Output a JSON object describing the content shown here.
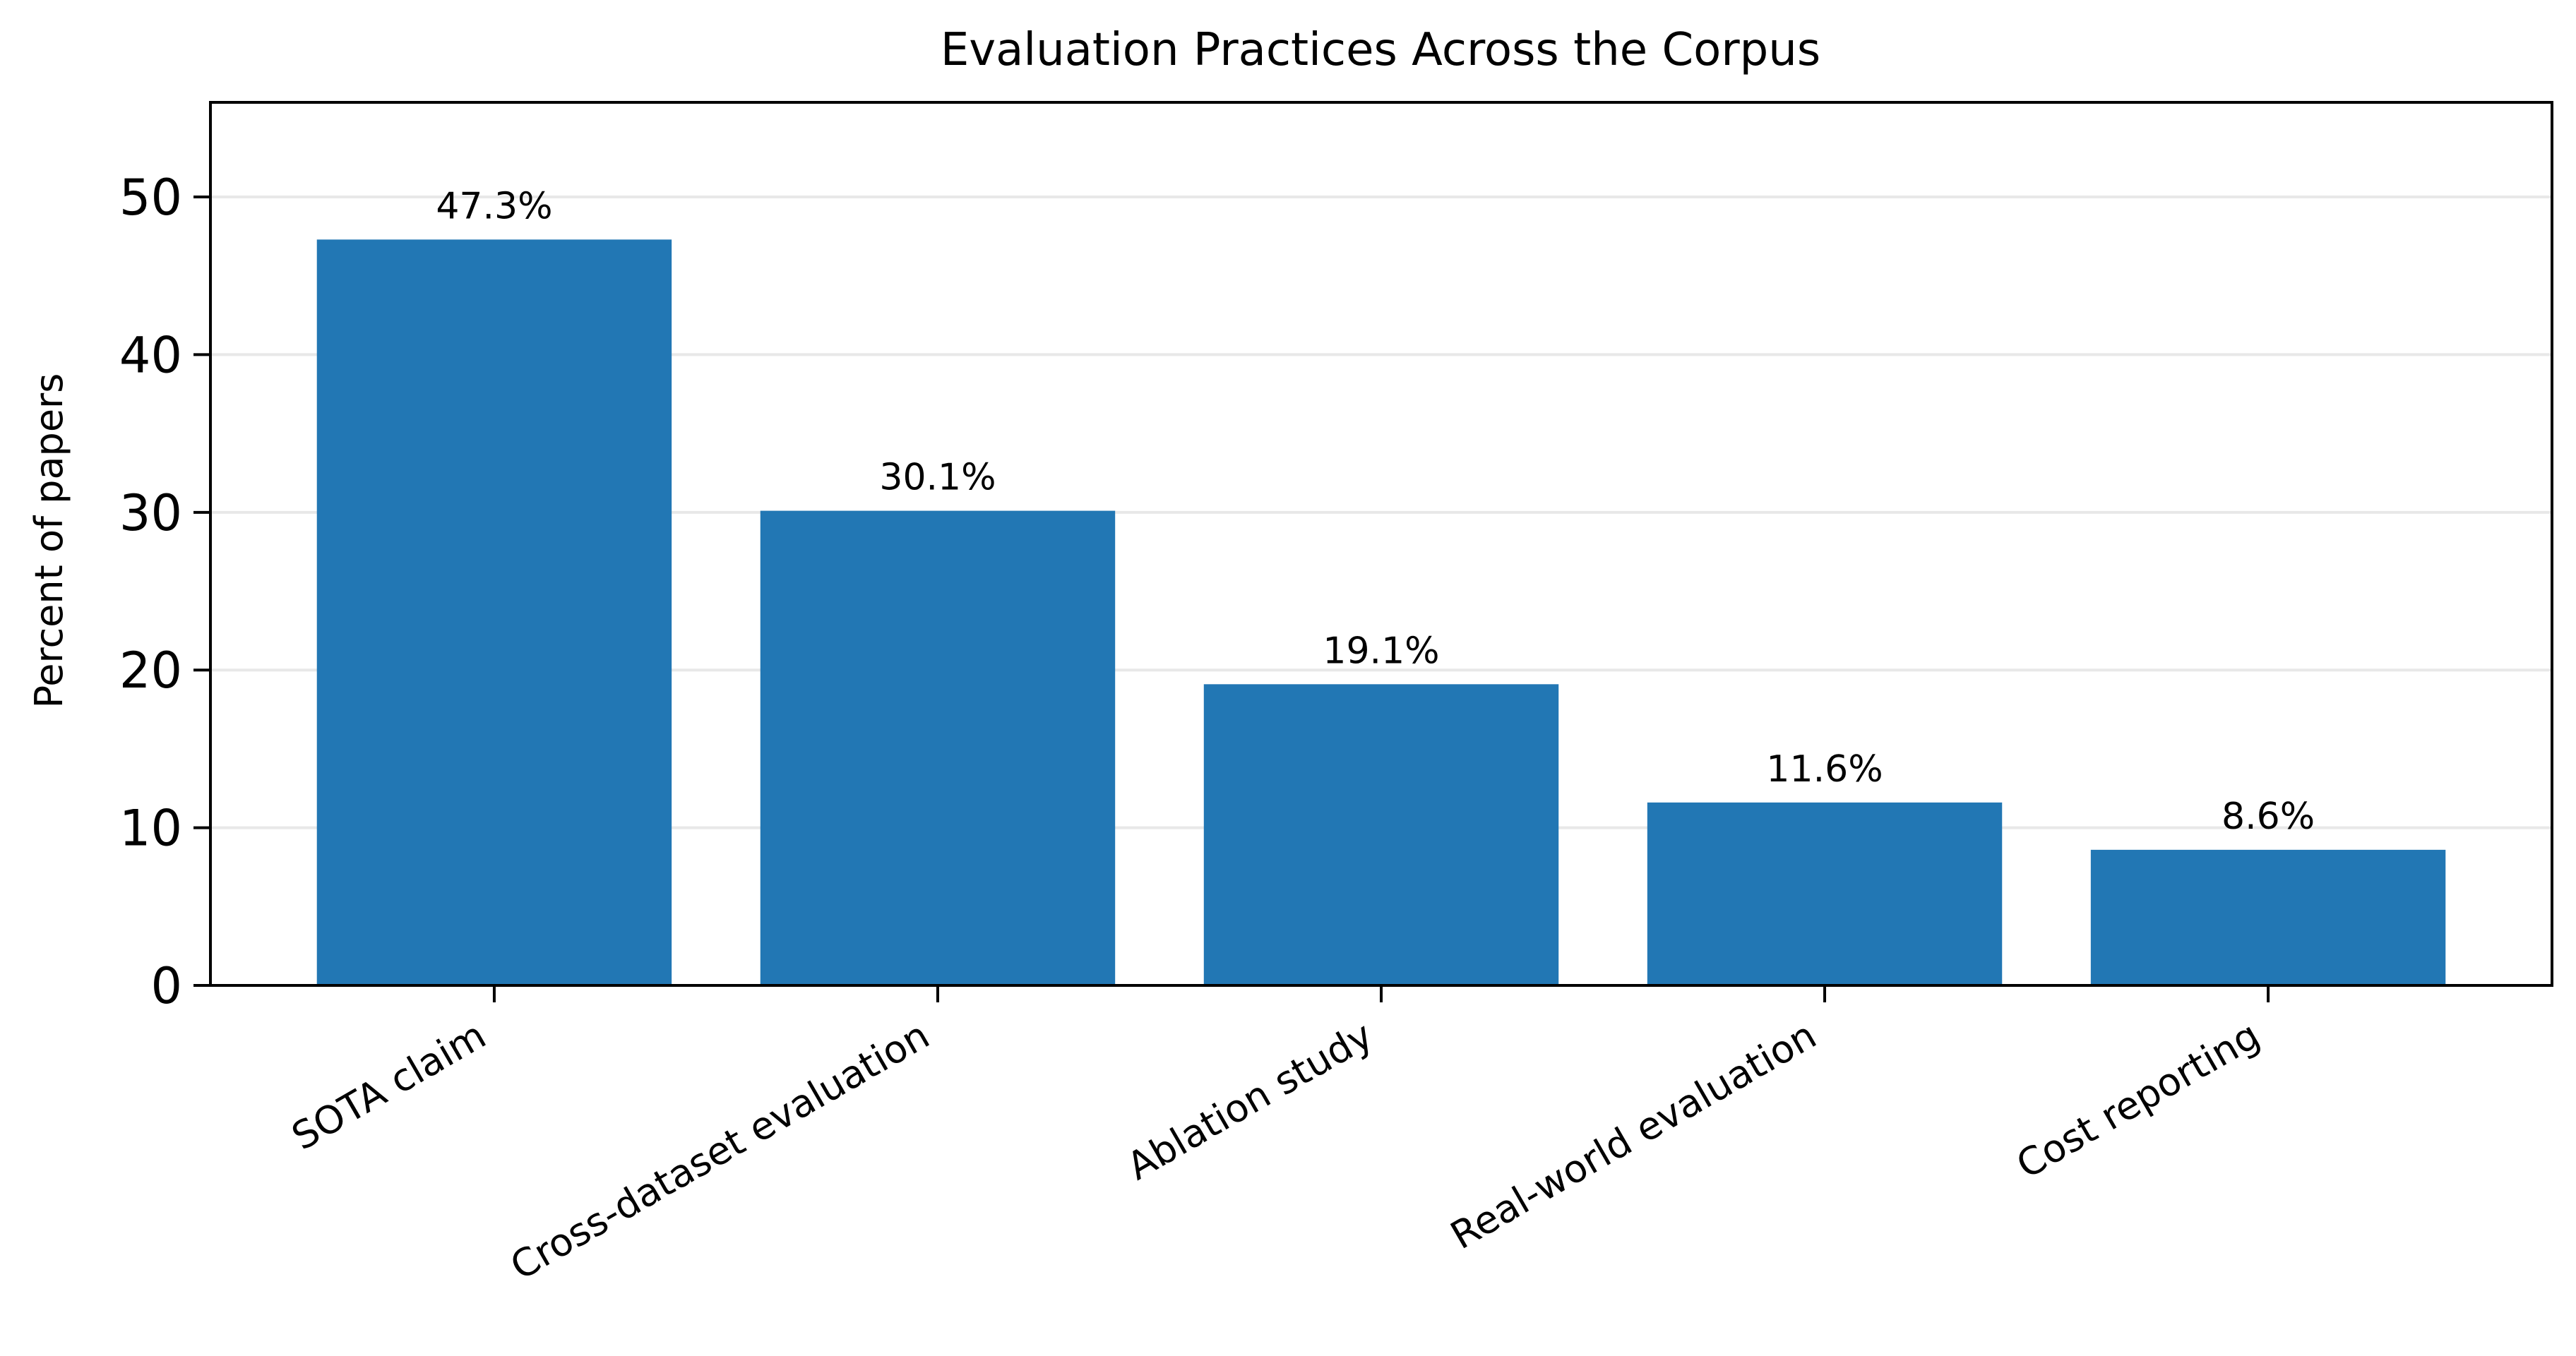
{
  "chart_data": {
    "type": "bar",
    "title": "Evaluation Practices Across the Corpus",
    "xlabel": "",
    "ylabel": "Percent of papers",
    "categories": [
      "SOTA claim",
      "Cross-dataset evaluation",
      "Ablation study",
      "Real-world evaluation",
      "Cost reporting"
    ],
    "values": [
      47.3,
      30.1,
      19.1,
      11.6,
      8.6
    ],
    "data_labels": [
      "47.3%",
      "30.1%",
      "19.1%",
      "11.6%",
      "8.6%"
    ],
    "ylim": [
      0,
      56
    ],
    "yticks": [
      0,
      10,
      20,
      30,
      40,
      50
    ],
    "grid": "y",
    "legend": "none",
    "colors": {
      "bar": "#2277b4",
      "grid": "#e8e8e8",
      "axis": "#000000"
    }
  }
}
